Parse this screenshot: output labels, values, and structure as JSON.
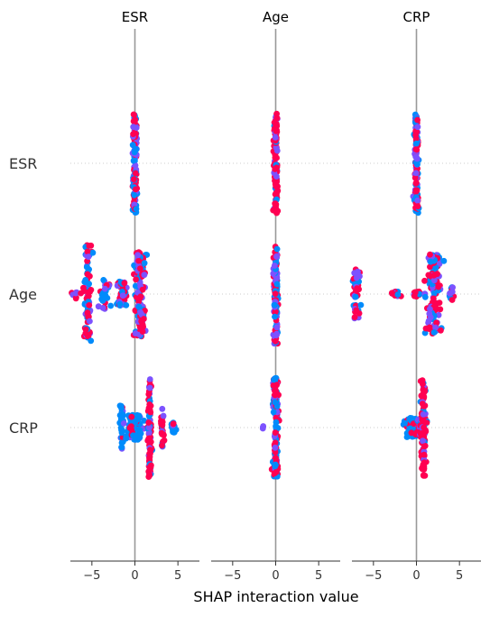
{
  "chart_data": {
    "type": "scatter",
    "subtype": "shap-interaction-summary",
    "xlabel": "SHAP interaction value",
    "features": [
      "ESR",
      "Age",
      "CRP"
    ],
    "xlim": [
      -7.5,
      7.5
    ],
    "xticks": [
      -5,
      0,
      5
    ],
    "xtick_labels": [
      "−5",
      "0",
      "5"
    ],
    "grid": false,
    "legend": "none",
    "colors": {
      "low": "#008bfb",
      "mid": "#7c52ff",
      "high": "#ff0052",
      "zero_line": "#999999",
      "row_guides": "#cccccc",
      "axis": "#333333"
    },
    "panels": [
      {
        "title": "ESR",
        "rows": [
          {
            "feature": "ESR",
            "clusters": [
              {
                "center": 0.0,
                "spread": 0.25,
                "height": 1.0,
                "n": 120,
                "colormix": "mixed"
              }
            ]
          },
          {
            "feature": "Age",
            "clusters": [
              {
                "center": -7.0,
                "spread": 0.3,
                "height": 0.1,
                "n": 8,
                "colormix": "mixed"
              },
              {
                "center": -5.5,
                "spread": 0.45,
                "height": 1.0,
                "n": 90,
                "colormix": "mixed"
              },
              {
                "center": -3.5,
                "spread": 0.5,
                "height": 0.3,
                "n": 30,
                "colormix": "mixed"
              },
              {
                "center": -1.5,
                "spread": 0.6,
                "height": 0.25,
                "n": 40,
                "colormix": "mixed"
              },
              {
                "center": 0.6,
                "spread": 0.7,
                "height": 0.85,
                "n": 130,
                "colormix": "mixed"
              }
            ]
          },
          {
            "feature": "CRP",
            "clusters": [
              {
                "center": -1.5,
                "spread": 0.2,
                "height": 0.45,
                "n": 30,
                "colormix": "low"
              },
              {
                "center": 0.0,
                "spread": 0.9,
                "height": 0.25,
                "n": 90,
                "colormix": "low"
              },
              {
                "center": 1.7,
                "spread": 0.2,
                "height": 1.0,
                "n": 90,
                "colormix": "high"
              },
              {
                "center": 3.2,
                "spread": 0.2,
                "height": 0.4,
                "n": 30,
                "colormix": "high"
              },
              {
                "center": 4.5,
                "spread": 0.4,
                "height": 0.1,
                "n": 18,
                "colormix": "low"
              }
            ]
          }
        ]
      },
      {
        "title": "Age",
        "rows": [
          {
            "feature": "ESR",
            "clusters": [
              {
                "center": 0.0,
                "spread": 0.2,
                "height": 1.0,
                "n": 120,
                "colormix": "high"
              }
            ]
          },
          {
            "feature": "Age",
            "clusters": [
              {
                "center": 0.0,
                "spread": 0.25,
                "height": 1.0,
                "n": 120,
                "colormix": "mixed"
              }
            ]
          },
          {
            "feature": "CRP",
            "clusters": [
              {
                "center": 0.0,
                "spread": 0.3,
                "height": 1.0,
                "n": 140,
                "colormix": "mixed"
              },
              {
                "center": -1.5,
                "spread": 0.1,
                "height": 0.05,
                "n": 3,
                "colormix": "mid"
              }
            ]
          }
        ]
      },
      {
        "title": "CRP",
        "rows": [
          {
            "feature": "ESR",
            "clusters": [
              {
                "center": 0.0,
                "spread": 0.2,
                "height": 1.0,
                "n": 120,
                "colormix": "mixed"
              }
            ]
          },
          {
            "feature": "Age",
            "clusters": [
              {
                "center": -7.0,
                "spread": 0.4,
                "height": 0.5,
                "n": 40,
                "colormix": "mixed"
              },
              {
                "center": -2.5,
                "spread": 0.6,
                "height": 0.05,
                "n": 15,
                "colormix": "high"
              },
              {
                "center": 0.0,
                "spread": 0.5,
                "height": 0.05,
                "n": 25,
                "colormix": "high"
              },
              {
                "center": 2.0,
                "spread": 0.8,
                "height": 0.8,
                "n": 130,
                "colormix": "mixed"
              },
              {
                "center": 4.0,
                "spread": 0.3,
                "height": 0.15,
                "n": 10,
                "colormix": "mixed"
              }
            ]
          },
          {
            "feature": "CRP",
            "clusters": [
              {
                "center": -0.6,
                "spread": 0.6,
                "height": 0.2,
                "n": 90,
                "colormix": "low"
              },
              {
                "center": 0.5,
                "spread": 0.5,
                "height": 0.2,
                "n": 50,
                "colormix": "mixed"
              },
              {
                "center": 0.8,
                "spread": 0.25,
                "height": 1.0,
                "n": 90,
                "colormix": "high"
              }
            ]
          }
        ]
      }
    ]
  }
}
